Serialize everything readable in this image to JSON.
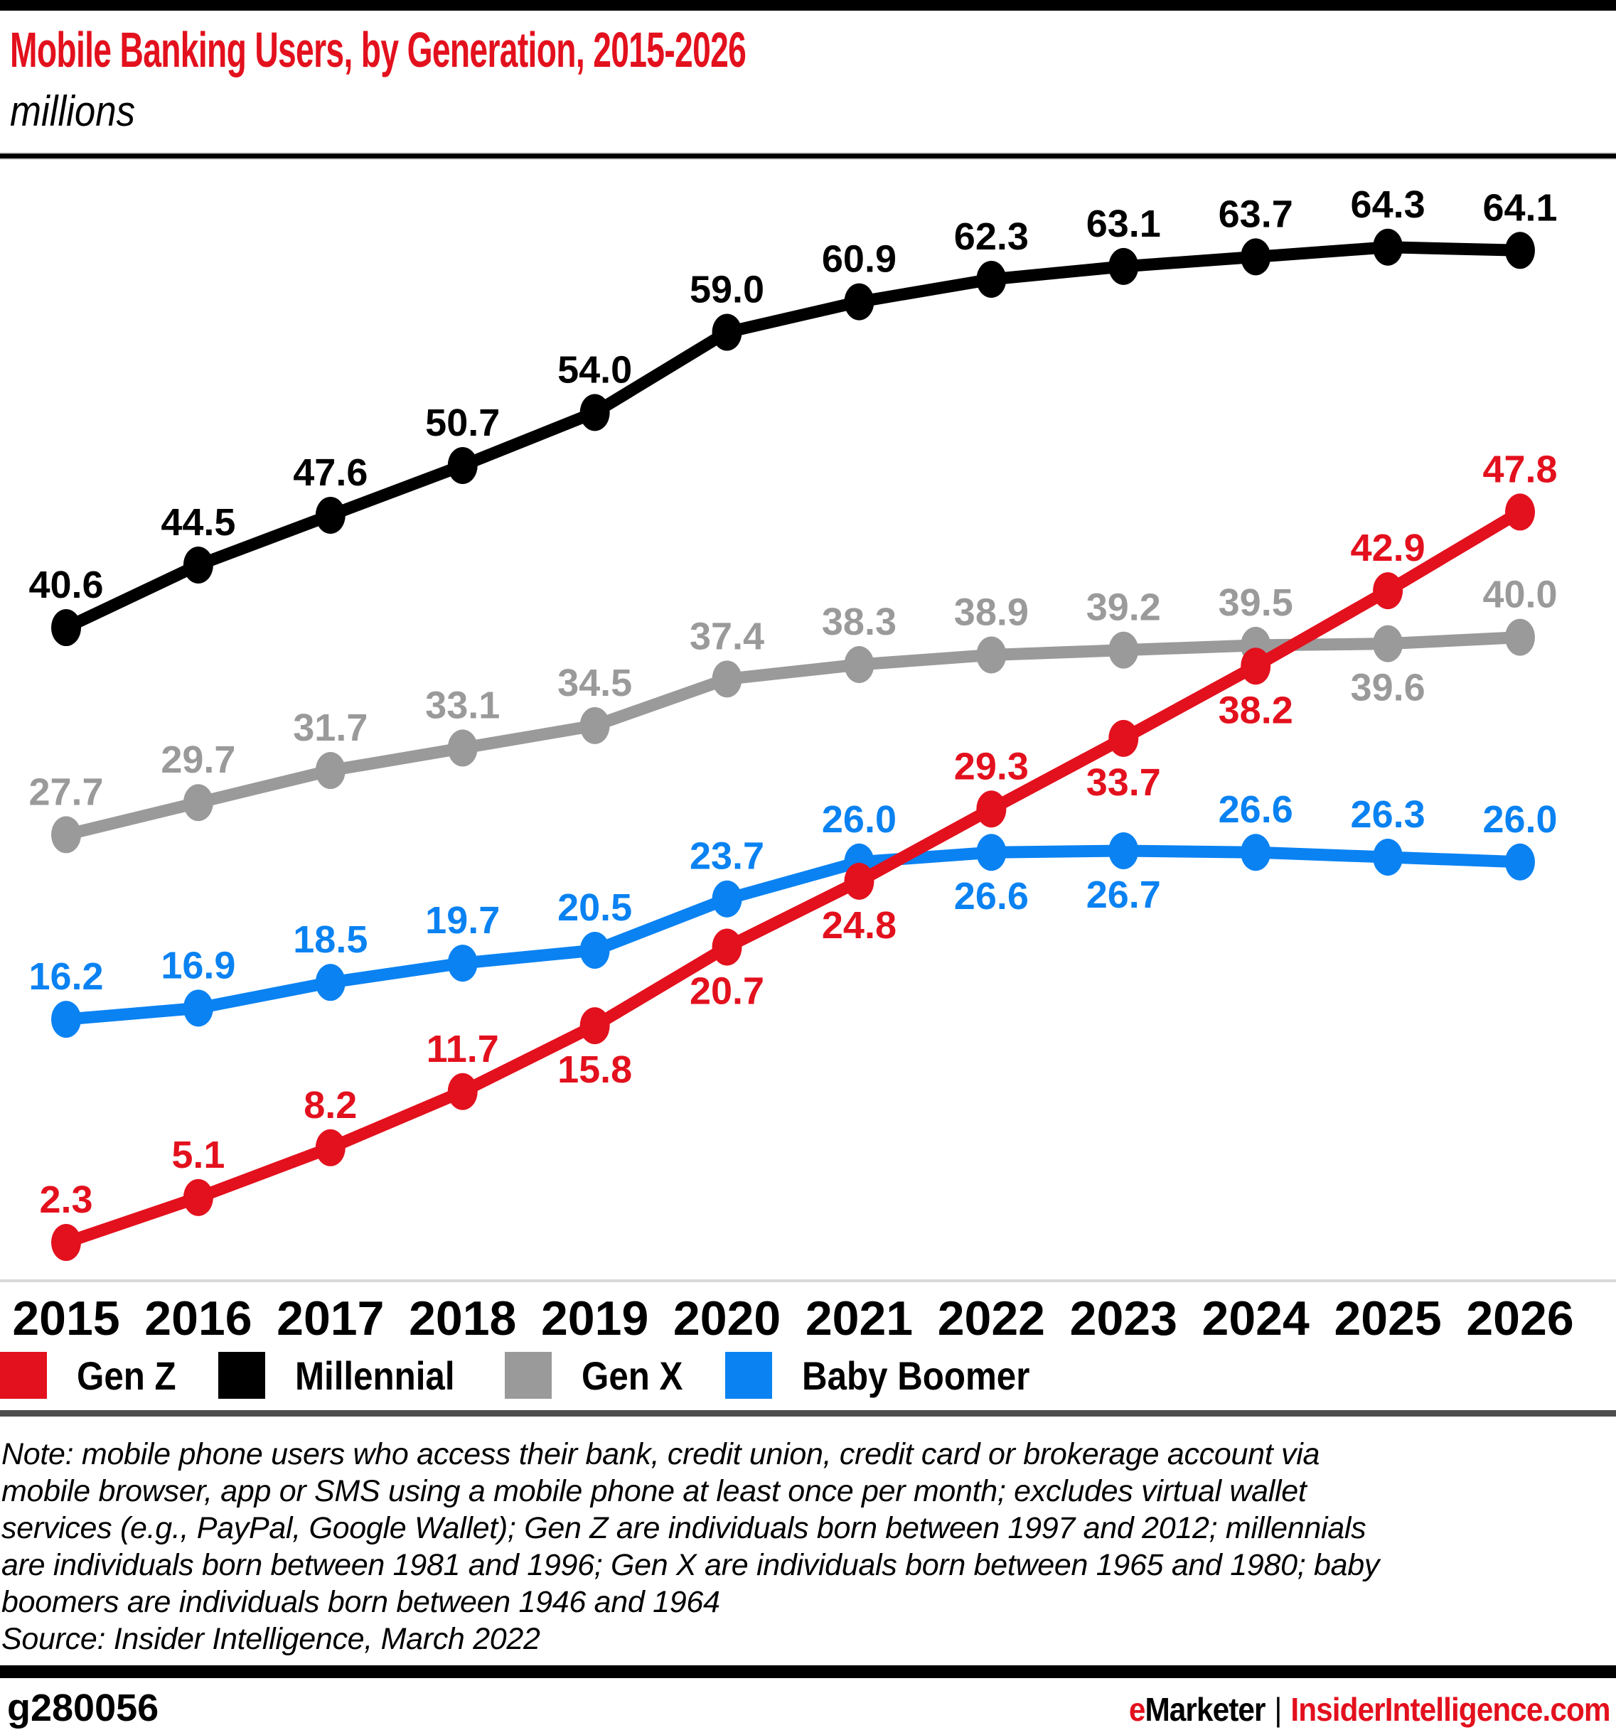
{
  "header": {
    "title": "Mobile Banking Users, by Generation, 2015-2026",
    "subtitle": "millions"
  },
  "colors": {
    "red": "#e3101d",
    "black": "#000000",
    "gray": "#9a9a9a",
    "blue": "#0a82f2",
    "axis_line": "#d9d9d9",
    "divider": "#4d4d4d"
  },
  "chart_data": {
    "type": "line",
    "title": "Mobile Banking Users, by Generation, 2015-2026",
    "ylabel": "millions",
    "ylim": [
      0,
      70
    ],
    "grid": false,
    "legend_position": "bottom",
    "categories": [
      "2015",
      "2016",
      "2017",
      "2018",
      "2019",
      "2020",
      "2021",
      "2022",
      "2023",
      "2024",
      "2025",
      "2026"
    ],
    "series": [
      {
        "name": "Gen Z",
        "color": "#e3101d",
        "values": [
          2.3,
          5.1,
          8.2,
          11.7,
          15.8,
          20.7,
          24.8,
          29.3,
          33.7,
          38.2,
          42.9,
          47.8
        ],
        "label_pos": [
          "above",
          "above",
          "above",
          "above",
          "below",
          "below",
          "below",
          "above",
          "below",
          "below",
          "above",
          "above"
        ]
      },
      {
        "name": "Millennial",
        "color": "#000000",
        "values": [
          40.6,
          44.5,
          47.6,
          50.7,
          54.0,
          59.0,
          60.9,
          62.3,
          63.1,
          63.7,
          64.3,
          64.1
        ],
        "label_pos": [
          "above",
          "above",
          "above",
          "above",
          "above",
          "above",
          "above",
          "above",
          "above",
          "above",
          "above",
          "above"
        ]
      },
      {
        "name": "Gen X",
        "color": "#9a9a9a",
        "values": [
          27.7,
          29.7,
          31.7,
          33.1,
          34.5,
          37.4,
          38.3,
          38.9,
          39.2,
          39.5,
          39.6,
          40.0
        ],
        "label_pos": [
          "above",
          "above",
          "above",
          "above",
          "above",
          "above",
          "above",
          "above",
          "above",
          "above",
          "below",
          "above"
        ]
      },
      {
        "name": "Baby Boomer",
        "color": "#0a82f2",
        "values": [
          16.2,
          16.9,
          18.5,
          19.7,
          20.5,
          23.7,
          26.0,
          26.6,
          26.7,
          26.6,
          26.3,
          26.0
        ],
        "label_pos": [
          "above",
          "above",
          "above",
          "above",
          "above",
          "above",
          "above",
          "below",
          "below",
          "above",
          "above",
          "above"
        ]
      }
    ]
  },
  "legend": {
    "items": [
      {
        "label": "Gen Z",
        "color": "#e3101d"
      },
      {
        "label": "Millennial",
        "color": "#000000"
      },
      {
        "label": "Gen X",
        "color": "#9a9a9a"
      },
      {
        "label": "Baby Boomer",
        "color": "#0a82f2"
      }
    ]
  },
  "footnote": {
    "lines": [
      "Note: mobile phone users who access their bank, credit union, credit card or brokerage account via",
      "mobile browser, app or SMS using a mobile phone at least once per month; excludes virtual wallet",
      "services (e.g., PayPal, Google Wallet); Gen Z are individuals born between 1997 and 2012; millennials",
      "are individuals born between 1981 and 1996; Gen X are individuals born between 1965 and 1980; baby",
      "boomers are individuals born between 1946 and 1964"
    ],
    "source": "Source: Insider Intelligence, March 2022"
  },
  "footer": {
    "chart_id": "g280056",
    "brand_e": "e",
    "brand_marketer": "Marketer",
    "separator": "|",
    "brand_site": "InsiderIntelligence.com"
  }
}
